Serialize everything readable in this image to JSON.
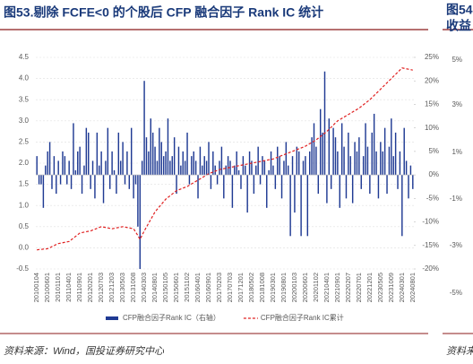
{
  "chart_data": {
    "type": "bar",
    "title": "图53.剔除 FCFE<0 的个股后 CFP 融合因子 Rank IC 统计",
    "source": "资料来源：Wind，国投证券研究中心",
    "grid": true,
    "categories": [
      "20100104",
      null,
      null,
      null,
      null,
      "20100601",
      null,
      null,
      null,
      null,
      "20101101",
      null,
      null,
      null,
      null,
      "20110401",
      null,
      null,
      null,
      null,
      "20110901",
      null,
      null,
      null,
      null,
      "20120201",
      null,
      null,
      null,
      null,
      "20120703",
      null,
      null,
      null,
      null,
      "20121203",
      null,
      null,
      null,
      null,
      "20130503",
      null,
      null,
      null,
      null,
      "20131008",
      null,
      null,
      null,
      null,
      "20140303",
      null,
      null,
      null,
      null,
      "20140801",
      null,
      null,
      null,
      null,
      "20150105",
      null,
      null,
      null,
      null,
      "20150601",
      null,
      null,
      null,
      null,
      "20151102",
      null,
      null,
      null,
      null,
      "20160401",
      null,
      null,
      null,
      null,
      "20160901",
      null,
      null,
      null,
      null,
      "20170203",
      null,
      null,
      null,
      null,
      "20170703",
      null,
      null,
      null,
      null,
      "20171201",
      null,
      null,
      null,
      null,
      "20180502",
      null,
      null,
      null,
      null,
      "20181008",
      null,
      null,
      null,
      null,
      "20190301",
      null,
      null,
      null,
      null,
      "20190801",
      null,
      null,
      null,
      null,
      "20200103",
      null,
      null,
      null,
      null,
      "20200601",
      null,
      null,
      null,
      null,
      "20201102",
      null,
      null,
      null,
      null,
      "20210401",
      null,
      null,
      null,
      null,
      "20210901",
      null,
      null,
      null,
      null,
      "20220207",
      null,
      null,
      null,
      null,
      "20220701",
      null,
      null,
      null,
      null,
      "20221201",
      null,
      null,
      null,
      null,
      "20230505",
      null,
      null,
      null,
      null,
      "20231009",
      null,
      null,
      null,
      null,
      "20240301",
      null,
      null,
      null,
      null,
      "20240801"
    ],
    "ylim": [
      -0.5,
      4.5
    ],
    "yticks": [
      -0.5,
      {
        "value": 0,
        "label": "0.0"
      },
      0.5,
      {
        "value": 1,
        "label": "1.0"
      },
      1.5,
      {
        "value": 2,
        "label": "2.0"
      },
      2.5,
      {
        "value": 3,
        "label": "3.0"
      },
      3.5,
      {
        "value": 4,
        "label": "4.0"
      },
      4.5
    ],
    "y2lim": [
      -20,
      25
    ],
    "y2ticks": [
      {
        "value": -20,
        "label": "-20%"
      },
      {
        "value": -15,
        "label": "-15%"
      },
      {
        "value": -10,
        "label": "-10%"
      },
      {
        "value": -5,
        "label": "-5%"
      },
      {
        "value": 0,
        "label": "0%"
      },
      {
        "value": 5,
        "label": "5%"
      },
      {
        "value": 10,
        "label": "10%"
      },
      {
        "value": 15,
        "label": "15%"
      },
      {
        "value": 20,
        "label": "20%"
      },
      {
        "value": 25,
        "label": "25%"
      }
    ],
    "series": [
      {
        "name": "CFP融合因子Rank IC（右轴）",
        "type": "bar",
        "axis": "y2",
        "color": "#1f3a93",
        "values": [
          4,
          -2,
          -2,
          -7,
          2,
          5,
          7,
          -3,
          4,
          -4,
          3,
          -2,
          5,
          4,
          -2,
          3,
          -3,
          11,
          1,
          5,
          6,
          -4,
          2,
          10,
          9,
          -3,
          3,
          -5,
          9,
          2,
          5,
          -6,
          3,
          10,
          -3,
          5,
          1,
          -4,
          9,
          3,
          7,
          -2,
          5,
          -3,
          10,
          -5,
          -2,
          -11,
          -20,
          3,
          20,
          8,
          5,
          12,
          9,
          6,
          3,
          10,
          7,
          4,
          5,
          12,
          3,
          4,
          8,
          -4,
          6,
          2,
          5,
          3,
          9,
          -2,
          4,
          5,
          3,
          -5,
          6,
          2,
          4,
          3,
          7,
          -3,
          5,
          2,
          -2,
          3,
          6,
          -5,
          2,
          4,
          3,
          -7,
          2,
          5,
          1,
          -3,
          4,
          2,
          -8,
          5,
          3,
          -4,
          2,
          6,
          -2,
          4,
          3,
          -7,
          1,
          5,
          2,
          -3,
          6,
          4,
          -5,
          3,
          7,
          2,
          -13,
          4,
          -8,
          6,
          5,
          -13,
          3,
          4,
          -13,
          5,
          8,
          11,
          6,
          -4,
          14,
          9,
          22,
          -6,
          12,
          -3,
          10,
          8,
          5,
          -7,
          11,
          6,
          -5,
          9,
          4,
          -6,
          7,
          5,
          8,
          -3,
          4,
          11,
          6,
          -4,
          9,
          13,
          5,
          -5,
          7,
          5,
          10,
          -4,
          6,
          12,
          4,
          9,
          -3,
          5,
          -13,
          10,
          3,
          -5,
          2,
          -3
        ]
      },
      {
        "name": "CFP融合因子Rank IC累计",
        "type": "line",
        "axis": "y",
        "color": "#e02020",
        "values": [
          -0.05,
          -0.04,
          -0.04,
          -0.03,
          -0.03,
          -0.02,
          0.0,
          0.03,
          0.05,
          0.08,
          0.1,
          0.11,
          0.12,
          0.13,
          0.14,
          0.15,
          0.19,
          0.23,
          0.27,
          0.31,
          0.35,
          0.36,
          0.37,
          0.38,
          0.39,
          0.4,
          0.42,
          0.44,
          0.46,
          0.48,
          0.5,
          0.49,
          0.48,
          0.47,
          0.46,
          0.45,
          0.46,
          0.47,
          0.48,
          0.49,
          0.5,
          0.49,
          0.48,
          0.47,
          0.46,
          0.45,
          0.37,
          0.29,
          0.2,
          0.3,
          0.4,
          0.49,
          0.58,
          0.67,
          0.76,
          0.85,
          0.91,
          0.97,
          1.03,
          1.09,
          1.15,
          1.19,
          1.23,
          1.27,
          1.31,
          1.35,
          1.37,
          1.39,
          1.41,
          1.43,
          1.45,
          1.48,
          1.51,
          1.54,
          1.57,
          1.6,
          1.63,
          1.66,
          1.69,
          1.72,
          1.75,
          1.77,
          1.79,
          1.81,
          1.83,
          1.85,
          1.86,
          1.87,
          1.88,
          1.89,
          1.9,
          1.91,
          1.92,
          1.93,
          1.94,
          1.95,
          1.96,
          1.97,
          1.98,
          1.99,
          2.0,
          2.01,
          2.02,
          2.03,
          2.04,
          2.05,
          2.06,
          2.07,
          2.08,
          2.09,
          2.1,
          2.12,
          2.14,
          2.16,
          2.18,
          2.2,
          2.22,
          2.24,
          2.26,
          2.28,
          2.3,
          2.32,
          2.34,
          2.36,
          2.38,
          2.4,
          2.43,
          2.46,
          2.49,
          2.52,
          2.55,
          2.59,
          2.63,
          2.67,
          2.71,
          2.75,
          2.8,
          2.85,
          2.9,
          2.95,
          3.0,
          3.03,
          3.06,
          3.09,
          3.12,
          3.15,
          3.18,
          3.21,
          3.24,
          3.27,
          3.3,
          3.34,
          3.38,
          3.42,
          3.46,
          3.5,
          3.55,
          3.6,
          3.65,
          3.7,
          3.75,
          3.8,
          3.85,
          3.9,
          3.95,
          4.0,
          4.05,
          4.1,
          4.15,
          4.2,
          4.25,
          4.24,
          4.23,
          4.22,
          4.21,
          4.2
        ]
      }
    ]
  },
  "next_panel": {
    "title_lines": [
      "图54",
      "收益"
    ],
    "axis_labels": [
      "5%",
      "3%",
      "1%",
      "-1%",
      "-3%",
      "-5%"
    ],
    "source": "资料来"
  }
}
